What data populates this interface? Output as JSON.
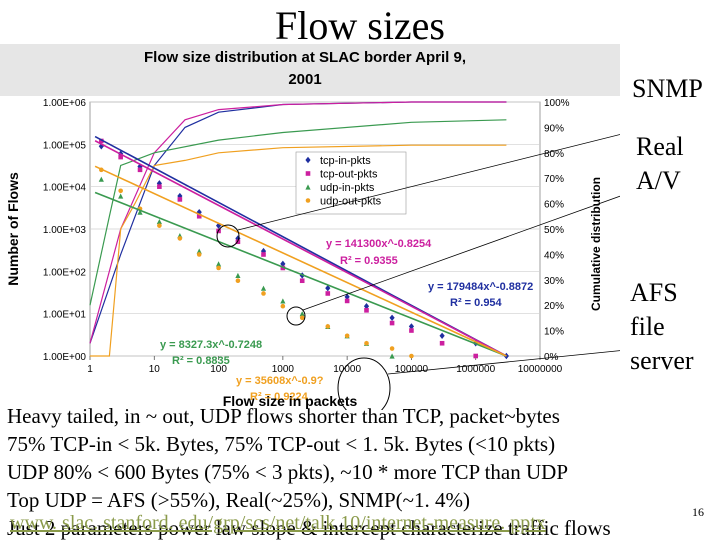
{
  "slide": {
    "title": "Flow sizes",
    "callouts": {
      "snmp": "SNMP",
      "av_1": "Real",
      "av_2": "A/V",
      "afs_1": "AFS",
      "afs_2": "file",
      "afs_3": "server"
    },
    "notes": [
      "Heavy tailed, in ~ out, UDP flows shorter than TCP, packet~bytes",
      "75% TCP-in < 5k. Bytes, 75% TCP-out < 1. 5k. Bytes (<10 pkts)",
      "UDP 80% < 600 Bytes (75% < 3 pkts), ~10 * more TCP than UDP",
      "Top UDP = AFS (>55%), Real(~25%), SNMP(~1. 4%)",
      "Just 2 parameters power law slope & intercept characterize traffic flows"
    ],
    "footer_url": "www. slac. stanford. edu/grp/scs/net/talk 10/internet-measure. pptx",
    "page_number": "16"
  },
  "colors": {
    "tcp_in": "#1f2fa0",
    "tcp_out": "#cc1f9f",
    "udp_in": "#3a9a50",
    "udp_out": "#f0a020",
    "title_bg": "#e6e6e6"
  },
  "chart_data": {
    "type": "scatter",
    "title": "Flow size distribution at SLAC border April 9, 2001",
    "xlabel": "Flow size in packets",
    "ylabel": "Number of Flows",
    "y2label": "Cumulative distribution",
    "xscale": "log",
    "yscale": "log",
    "xlim": [
      1,
      10000000
    ],
    "ylim": [
      1,
      1000000
    ],
    "y2lim": [
      0,
      100
    ],
    "x_ticks": [
      "1",
      "10",
      "100",
      "1000",
      "10000",
      "100000",
      "1000000",
      "10000000"
    ],
    "y_ticks": [
      "1.00E+00",
      "1.00E+01",
      "1.00E+02",
      "1.00E+03",
      "1.00E+04",
      "1.00E+05",
      "1.00E+06"
    ],
    "y2_ticks": [
      "0%",
      "10%",
      "20%",
      "30%",
      "40%",
      "50%",
      "60%",
      "70%",
      "80%",
      "90%",
      "100%"
    ],
    "legend_position": "top-center",
    "series": [
      {
        "name": "tcp-in-pkts",
        "color_key": "tcp_in",
        "marker": "diamond",
        "points": [
          [
            1.5,
            90000
          ],
          [
            3,
            60000
          ],
          [
            6,
            30000
          ],
          [
            12,
            12000
          ],
          [
            25,
            6000
          ],
          [
            50,
            2500
          ],
          [
            100,
            1200
          ],
          [
            200,
            600
          ],
          [
            500,
            300
          ],
          [
            1000,
            150
          ],
          [
            2000,
            80
          ],
          [
            5000,
            40
          ],
          [
            10000,
            25
          ],
          [
            20000,
            15
          ],
          [
            50000,
            8
          ],
          [
            100000,
            5
          ],
          [
            300000,
            3
          ],
          [
            1000000,
            2
          ],
          [
            3000000,
            1
          ]
        ],
        "fit_label": "y = 179484x^-0.8872",
        "r2_label": "R² = 0.954",
        "fit": [
          179484,
          -0.8872
        ],
        "cdf": [
          [
            1,
            5
          ],
          [
            3,
            40
          ],
          [
            10,
            75
          ],
          [
            30,
            90
          ],
          [
            100,
            96
          ],
          [
            1000,
            99
          ],
          [
            100000,
            100
          ],
          [
            3000000,
            100
          ]
        ]
      },
      {
        "name": "tcp-out-pkts",
        "color_key": "tcp_out",
        "marker": "square",
        "points": [
          [
            1.5,
            120000
          ],
          [
            3,
            50000
          ],
          [
            6,
            25000
          ],
          [
            12,
            10000
          ],
          [
            25,
            5000
          ],
          [
            50,
            2000
          ],
          [
            100,
            900
          ],
          [
            200,
            500
          ],
          [
            500,
            250
          ],
          [
            1000,
            120
          ],
          [
            2000,
            60
          ],
          [
            5000,
            30
          ],
          [
            10000,
            20
          ],
          [
            20000,
            12
          ],
          [
            50000,
            6
          ],
          [
            100000,
            4
          ],
          [
            300000,
            2
          ],
          [
            1000000,
            1
          ]
        ],
        "fit_label": "y = 141300x^-0.8254",
        "r2_label": "R² = 0.9355",
        "fit": [
          141300,
          -0.8254
        ],
        "cdf": [
          [
            1,
            5
          ],
          [
            3,
            50
          ],
          [
            10,
            80
          ],
          [
            30,
            93
          ],
          [
            100,
            97
          ],
          [
            1000,
            99
          ],
          [
            100000,
            100
          ],
          [
            3000000,
            100
          ]
        ]
      },
      {
        "name": "udp-in-pkts",
        "color_key": "udp_in",
        "marker": "triangle",
        "points": [
          [
            1.5,
            15000
          ],
          [
            3,
            6000
          ],
          [
            6,
            2500
          ],
          [
            12,
            1500
          ],
          [
            25,
            700
          ],
          [
            50,
            300
          ],
          [
            100,
            150
          ],
          [
            200,
            80
          ],
          [
            500,
            40
          ],
          [
            1000,
            20
          ],
          [
            2000,
            10
          ],
          [
            5000,
            5
          ],
          [
            10000,
            3
          ],
          [
            20000,
            2
          ],
          [
            50000,
            1
          ]
        ],
        "fit_label": "y = 8327.3x^-0.7248",
        "r2_label": "R² = 0.8835",
        "fit": [
          8327.3,
          -0.7248
        ],
        "cdf": [
          [
            1,
            20
          ],
          [
            2,
            55
          ],
          [
            3,
            75
          ],
          [
            10,
            80
          ],
          [
            100,
            85
          ],
          [
            1000,
            88
          ],
          [
            100000,
            92
          ],
          [
            3000000,
            93
          ]
        ]
      },
      {
        "name": "udp-out-pkts",
        "color_key": "udp_out",
        "marker": "circle",
        "points": [
          [
            1.5,
            25000
          ],
          [
            3,
            8000
          ],
          [
            6,
            3000
          ],
          [
            12,
            1200
          ],
          [
            25,
            600
          ],
          [
            50,
            250
          ],
          [
            100,
            120
          ],
          [
            200,
            60
          ],
          [
            500,
            30
          ],
          [
            1000,
            15
          ],
          [
            2000,
            8
          ],
          [
            5000,
            5
          ],
          [
            10000,
            3
          ],
          [
            20000,
            2
          ],
          [
            50000,
            1.5
          ],
          [
            100000,
            1
          ]
        ],
        "fit_label": "y = 35608x^-0.9?",
        "r2_label": "R² = 0.9224",
        "fit": [
          35608,
          -0.9
        ],
        "cdf": [
          [
            1,
            0
          ],
          [
            2,
            0
          ],
          [
            3,
            50
          ],
          [
            5,
            60
          ],
          [
            10,
            75
          ],
          [
            30,
            77
          ],
          [
            100,
            80
          ],
          [
            1000,
            82
          ],
          [
            100000,
            83
          ],
          [
            3000000,
            83
          ]
        ]
      }
    ]
  }
}
